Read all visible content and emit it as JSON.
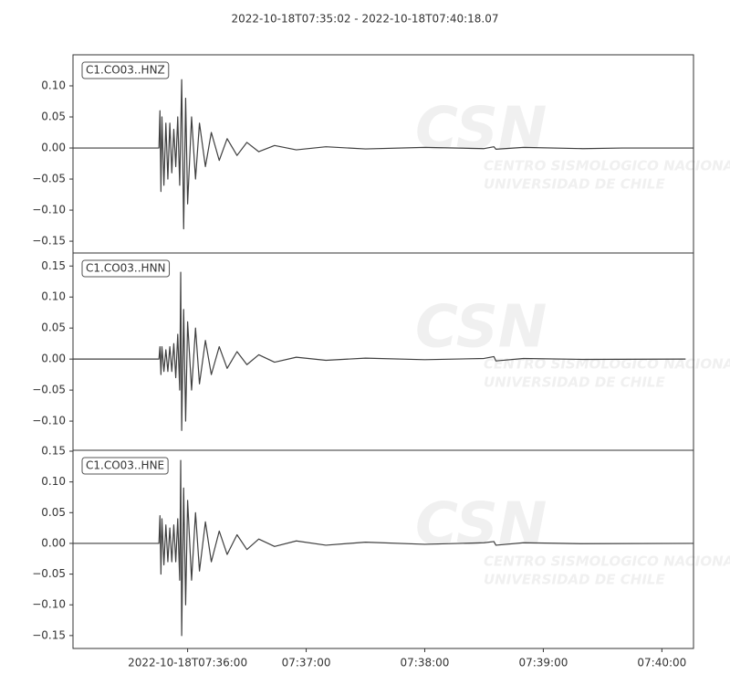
{
  "title": "2022-10-18T07:35:02  -  2022-10-18T07:40:18.07",
  "watermark": {
    "logo": "CSN",
    "lines": [
      "CENTRO SISMOLOGICO NACIONAL",
      "UNIVERSIDAD DE CHILE"
    ]
  },
  "chart_data": [
    {
      "type": "line",
      "label": "C1.CO03..HNZ",
      "color": "#3f3f3f",
      "xlim": [
        "07:35:02",
        "07:40:16"
      ],
      "ylim": [
        -0.169,
        0.15
      ],
      "yticks": [
        {
          "value": 0.1,
          "label": "0.10"
        },
        {
          "value": 0.05,
          "label": "0.05"
        },
        {
          "value": 0,
          "label": "0.00"
        },
        {
          "value": -0.05,
          "label": "−0.05"
        },
        {
          "value": -0.1,
          "label": "−0.10"
        },
        {
          "value": -0.15,
          "label": "−0.15"
        }
      ],
      "series": [
        {
          "name": "C1.CO03..HNZ",
          "x": [
            "07:35:02",
            "07:35:45.5",
            "07:35:46",
            "07:35:46.5",
            "07:35:47",
            "07:35:48",
            "07:35:49",
            "07:35:50",
            "07:35:51",
            "07:35:52",
            "07:35:53",
            "07:35:54",
            "07:35:55",
            "07:35:56",
            "07:35:57",
            "07:35:58",
            "07:35:59",
            "07:36:00",
            "07:36:02",
            "07:36:04",
            "07:36:06",
            "07:36:09",
            "07:36:12",
            "07:36:16",
            "07:36:20",
            "07:36:25",
            "07:36:30",
            "07:36:36",
            "07:36:44",
            "07:36:55",
            "07:37:10",
            "07:37:30",
            "07:38:00",
            "07:38:30",
            "07:38:35",
            "07:38:36",
            "07:38:50",
            "07:39:20",
            "07:39:40",
            "07:40:16"
          ],
          "values": [
            0,
            0,
            0.06,
            -0.07,
            0.05,
            -0.06,
            0.04,
            -0.05,
            0.04,
            -0.04,
            0.03,
            -0.03,
            0.05,
            -0.06,
            0.11,
            -0.13,
            0.08,
            -0.09,
            0.05,
            -0.05,
            0.04,
            -0.03,
            0.025,
            -0.02,
            0.015,
            -0.012,
            0.009,
            -0.006,
            0.004,
            -0.003,
            0.002,
            -0.0015,
            0.001,
            -0.001,
            0.002,
            -0.002,
            0.001,
            -0.001,
            0,
            0
          ]
        }
      ]
    },
    {
      "type": "line",
      "label": "C1.CO03..HNN",
      "color": "#3f3f3f",
      "xlim": [
        "07:35:02",
        "07:40:16"
      ],
      "ylim": [
        -0.147,
        0.171
      ],
      "yticks": [
        {
          "value": 0.15,
          "label": "0.15"
        },
        {
          "value": 0.1,
          "label": "0.10"
        },
        {
          "value": 0.05,
          "label": "0.05"
        },
        {
          "value": 0,
          "label": "0.00"
        },
        {
          "value": -0.05,
          "label": "−0.05"
        },
        {
          "value": -0.1,
          "label": "−0.10"
        }
      ],
      "series": [
        {
          "name": "C1.CO03..HNN",
          "x": [
            "07:35:02",
            "07:35:45.5",
            "07:35:46",
            "07:35:46.5",
            "07:35:47",
            "07:35:48",
            "07:35:49",
            "07:35:50",
            "07:35:51",
            "07:35:52",
            "07:35:53",
            "07:35:54",
            "07:35:55",
            "07:35:56",
            "07:35:56.5",
            "07:35:57",
            "07:35:58",
            "07:35:59",
            "07:36:00",
            "07:36:02",
            "07:36:04",
            "07:36:06",
            "07:36:09",
            "07:36:12",
            "07:36:16",
            "07:36:20",
            "07:36:25",
            "07:36:30",
            "07:36:36",
            "07:36:44",
            "07:36:55",
            "07:37:10",
            "07:37:30",
            "07:38:00",
            "07:38:30",
            "07:38:35",
            "07:38:36",
            "07:38:50",
            "07:39:20",
            "07:40:12"
          ],
          "values": [
            0,
            0,
            0.02,
            -0.025,
            0.02,
            -0.02,
            0.015,
            -0.02,
            0.02,
            -0.02,
            0.025,
            -0.03,
            0.04,
            -0.05,
            0.14,
            -0.115,
            0.08,
            -0.1,
            0.06,
            -0.05,
            0.05,
            -0.04,
            0.03,
            -0.025,
            0.02,
            -0.015,
            0.012,
            -0.009,
            0.007,
            -0.005,
            0.003,
            -0.002,
            0.0015,
            -0.001,
            0.001,
            0.004,
            -0.003,
            0.001,
            -0.0005,
            0
          ]
        }
      ]
    },
    {
      "type": "line",
      "label": "C1.CO03..HNE",
      "color": "#3f3f3f",
      "xlim": [
        "07:35:02",
        "07:40:16"
      ],
      "ylim": [
        -0.171,
        0.1515
      ],
      "yticks": [
        {
          "value": 0.15,
          "label": "0.15"
        },
        {
          "value": 0.1,
          "label": "0.10"
        },
        {
          "value": 0.05,
          "label": "0.05"
        },
        {
          "value": 0,
          "label": "0.00"
        },
        {
          "value": -0.05,
          "label": "−0.05"
        },
        {
          "value": -0.1,
          "label": "−0.10"
        },
        {
          "value": -0.15,
          "label": "−0.15"
        }
      ],
      "xticks": [
        {
          "value": "07:36:00",
          "label": "2022-10-18T07:36:00"
        },
        "07:37:00",
        "07:38:00",
        "07:39:00",
        "07:40:00"
      ],
      "series": [
        {
          "name": "C1.CO03..HNE",
          "x": [
            "07:35:02",
            "07:35:45.5",
            "07:35:46",
            "07:35:46.5",
            "07:35:47",
            "07:35:48",
            "07:35:49",
            "07:35:50",
            "07:35:51",
            "07:35:52",
            "07:35:53",
            "07:35:54",
            "07:35:55",
            "07:35:56",
            "07:35:56.5",
            "07:35:57",
            "07:35:58",
            "07:35:59",
            "07:36:00",
            "07:36:02",
            "07:36:04",
            "07:36:06",
            "07:36:09",
            "07:36:12",
            "07:36:16",
            "07:36:20",
            "07:36:25",
            "07:36:30",
            "07:36:36",
            "07:36:44",
            "07:36:55",
            "07:37:10",
            "07:37:30",
            "07:38:00",
            "07:38:30",
            "07:38:35",
            "07:38:36",
            "07:38:50",
            "07:39:20",
            "07:40:16"
          ],
          "values": [
            0,
            0,
            0.045,
            -0.05,
            0.04,
            -0.035,
            0.03,
            -0.03,
            0.025,
            -0.03,
            0.03,
            -0.03,
            0.04,
            -0.06,
            0.135,
            -0.15,
            0.09,
            -0.1,
            0.07,
            -0.06,
            0.05,
            -0.045,
            0.035,
            -0.03,
            0.02,
            -0.018,
            0.014,
            -0.01,
            0.007,
            -0.005,
            0.004,
            -0.003,
            0.002,
            -0.0015,
            0.001,
            0.003,
            -0.003,
            0.001,
            -0.0005,
            0
          ]
        }
      ]
    }
  ]
}
